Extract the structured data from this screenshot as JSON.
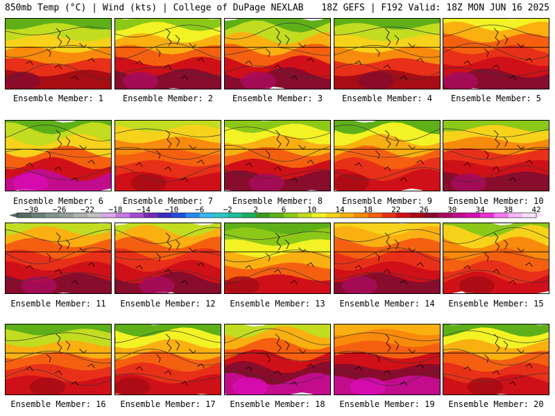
{
  "header": {
    "left": "850mb Temp (°C) | Wind (kts) | College of DuPage NEXLAB",
    "right": "18Z GEFS | F192 Valid: 18Z MON JUN 16 2025"
  },
  "chart_data": {
    "type": "heatmap",
    "title": "850mb Temp (°C) | Wind (kts)",
    "panels": [
      {
        "label": "Ensemble Member: 1",
        "scheme": [
          4,
          8,
          12,
          16,
          20,
          24
        ]
      },
      {
        "label": "Ensemble Member: 2",
        "scheme": [
          6,
          10,
          14,
          18,
          22,
          26
        ]
      },
      {
        "label": "Ensemble Member: 3",
        "scheme": [
          4,
          8,
          14,
          18,
          22,
          26
        ]
      },
      {
        "label": "Ensemble Member: 4",
        "scheme": [
          4,
          8,
          12,
          16,
          20,
          24
        ]
      },
      {
        "label": "Ensemble Member: 5",
        "scheme": [
          10,
          14,
          18,
          20,
          22,
          26
        ]
      },
      {
        "label": "Ensemble Member: 6",
        "scheme": [
          4,
          8,
          12,
          18,
          22,
          30
        ]
      },
      {
        "label": "Ensemble Member: 7",
        "scheme": [
          8,
          12,
          16,
          18,
          20,
          22
        ]
      },
      {
        "label": "Ensemble Member: 8",
        "scheme": [
          6,
          10,
          14,
          18,
          22,
          26
        ]
      },
      {
        "label": "Ensemble Member: 9",
        "scheme": [
          4,
          10,
          14,
          18,
          20,
          22
        ]
      },
      {
        "label": "Ensemble Member: 10",
        "scheme": [
          6,
          12,
          16,
          20,
          22,
          26
        ]
      },
      {
        "label": "Ensemble Member: 11",
        "scheme": [
          8,
          14,
          18,
          20,
          22,
          26
        ]
      },
      {
        "label": "Ensemble Member: 12",
        "scheme": [
          8,
          14,
          18,
          20,
          22,
          26
        ]
      },
      {
        "label": "Ensemble Member: 13",
        "scheme": [
          4,
          6,
          10,
          14,
          18,
          22
        ]
      },
      {
        "label": "Ensemble Member: 14",
        "scheme": [
          12,
          14,
          18,
          20,
          22,
          26
        ]
      },
      {
        "label": "Ensemble Member: 15",
        "scheme": [
          6,
          12,
          16,
          18,
          20,
          22
        ]
      },
      {
        "label": "Ensemble Member: 16",
        "scheme": [
          4,
          8,
          14,
          18,
          20,
          22
        ]
      },
      {
        "label": "Ensemble Member: 17",
        "scheme": [
          4,
          10,
          14,
          18,
          20,
          22
        ]
      },
      {
        "label": "Ensemble Member: 18",
        "scheme": [
          8,
          14,
          18,
          22,
          26,
          30
        ]
      },
      {
        "label": "Ensemble Member: 19",
        "scheme": [
          14,
          16,
          18,
          22,
          26,
          30
        ]
      },
      {
        "label": "Ensemble Member: 20",
        "scheme": [
          4,
          10,
          14,
          18,
          20,
          22
        ]
      }
    ],
    "colorbar": {
      "min": -32,
      "step": 2,
      "tick_labels": [
        "−30",
        "−26",
        "−22",
        "−18",
        "−14",
        "−10",
        "−6",
        "−2",
        "2",
        "6",
        "10",
        "14",
        "18",
        "22",
        "26",
        "30",
        "34",
        "38",
        "42"
      ],
      "colors": [
        "#556b64",
        "#6b7f79",
        "#80948f",
        "#959e9b",
        "#b0b0b0",
        "#c3c3c3",
        "#d9a8e8",
        "#c77ae0",
        "#a64bd6",
        "#7a2bb5",
        "#3a2cc0",
        "#1f4fe0",
        "#2a8af0",
        "#38b8f4",
        "#2cc8c8",
        "#20c09a",
        "#18b060",
        "#3a9a20",
        "#5fb018",
        "#8cc818",
        "#c2dc20",
        "#f2f224",
        "#f7d21a",
        "#f9b010",
        "#f88a0c",
        "#f46010",
        "#e83018",
        "#d01018",
        "#a80c14",
        "#880c2c",
        "#a80c5c",
        "#c20c8c",
        "#d80cb4",
        "#ee30d8",
        "#f878f0",
        "#fcb8fc",
        "#fde0fd"
      ]
    }
  }
}
